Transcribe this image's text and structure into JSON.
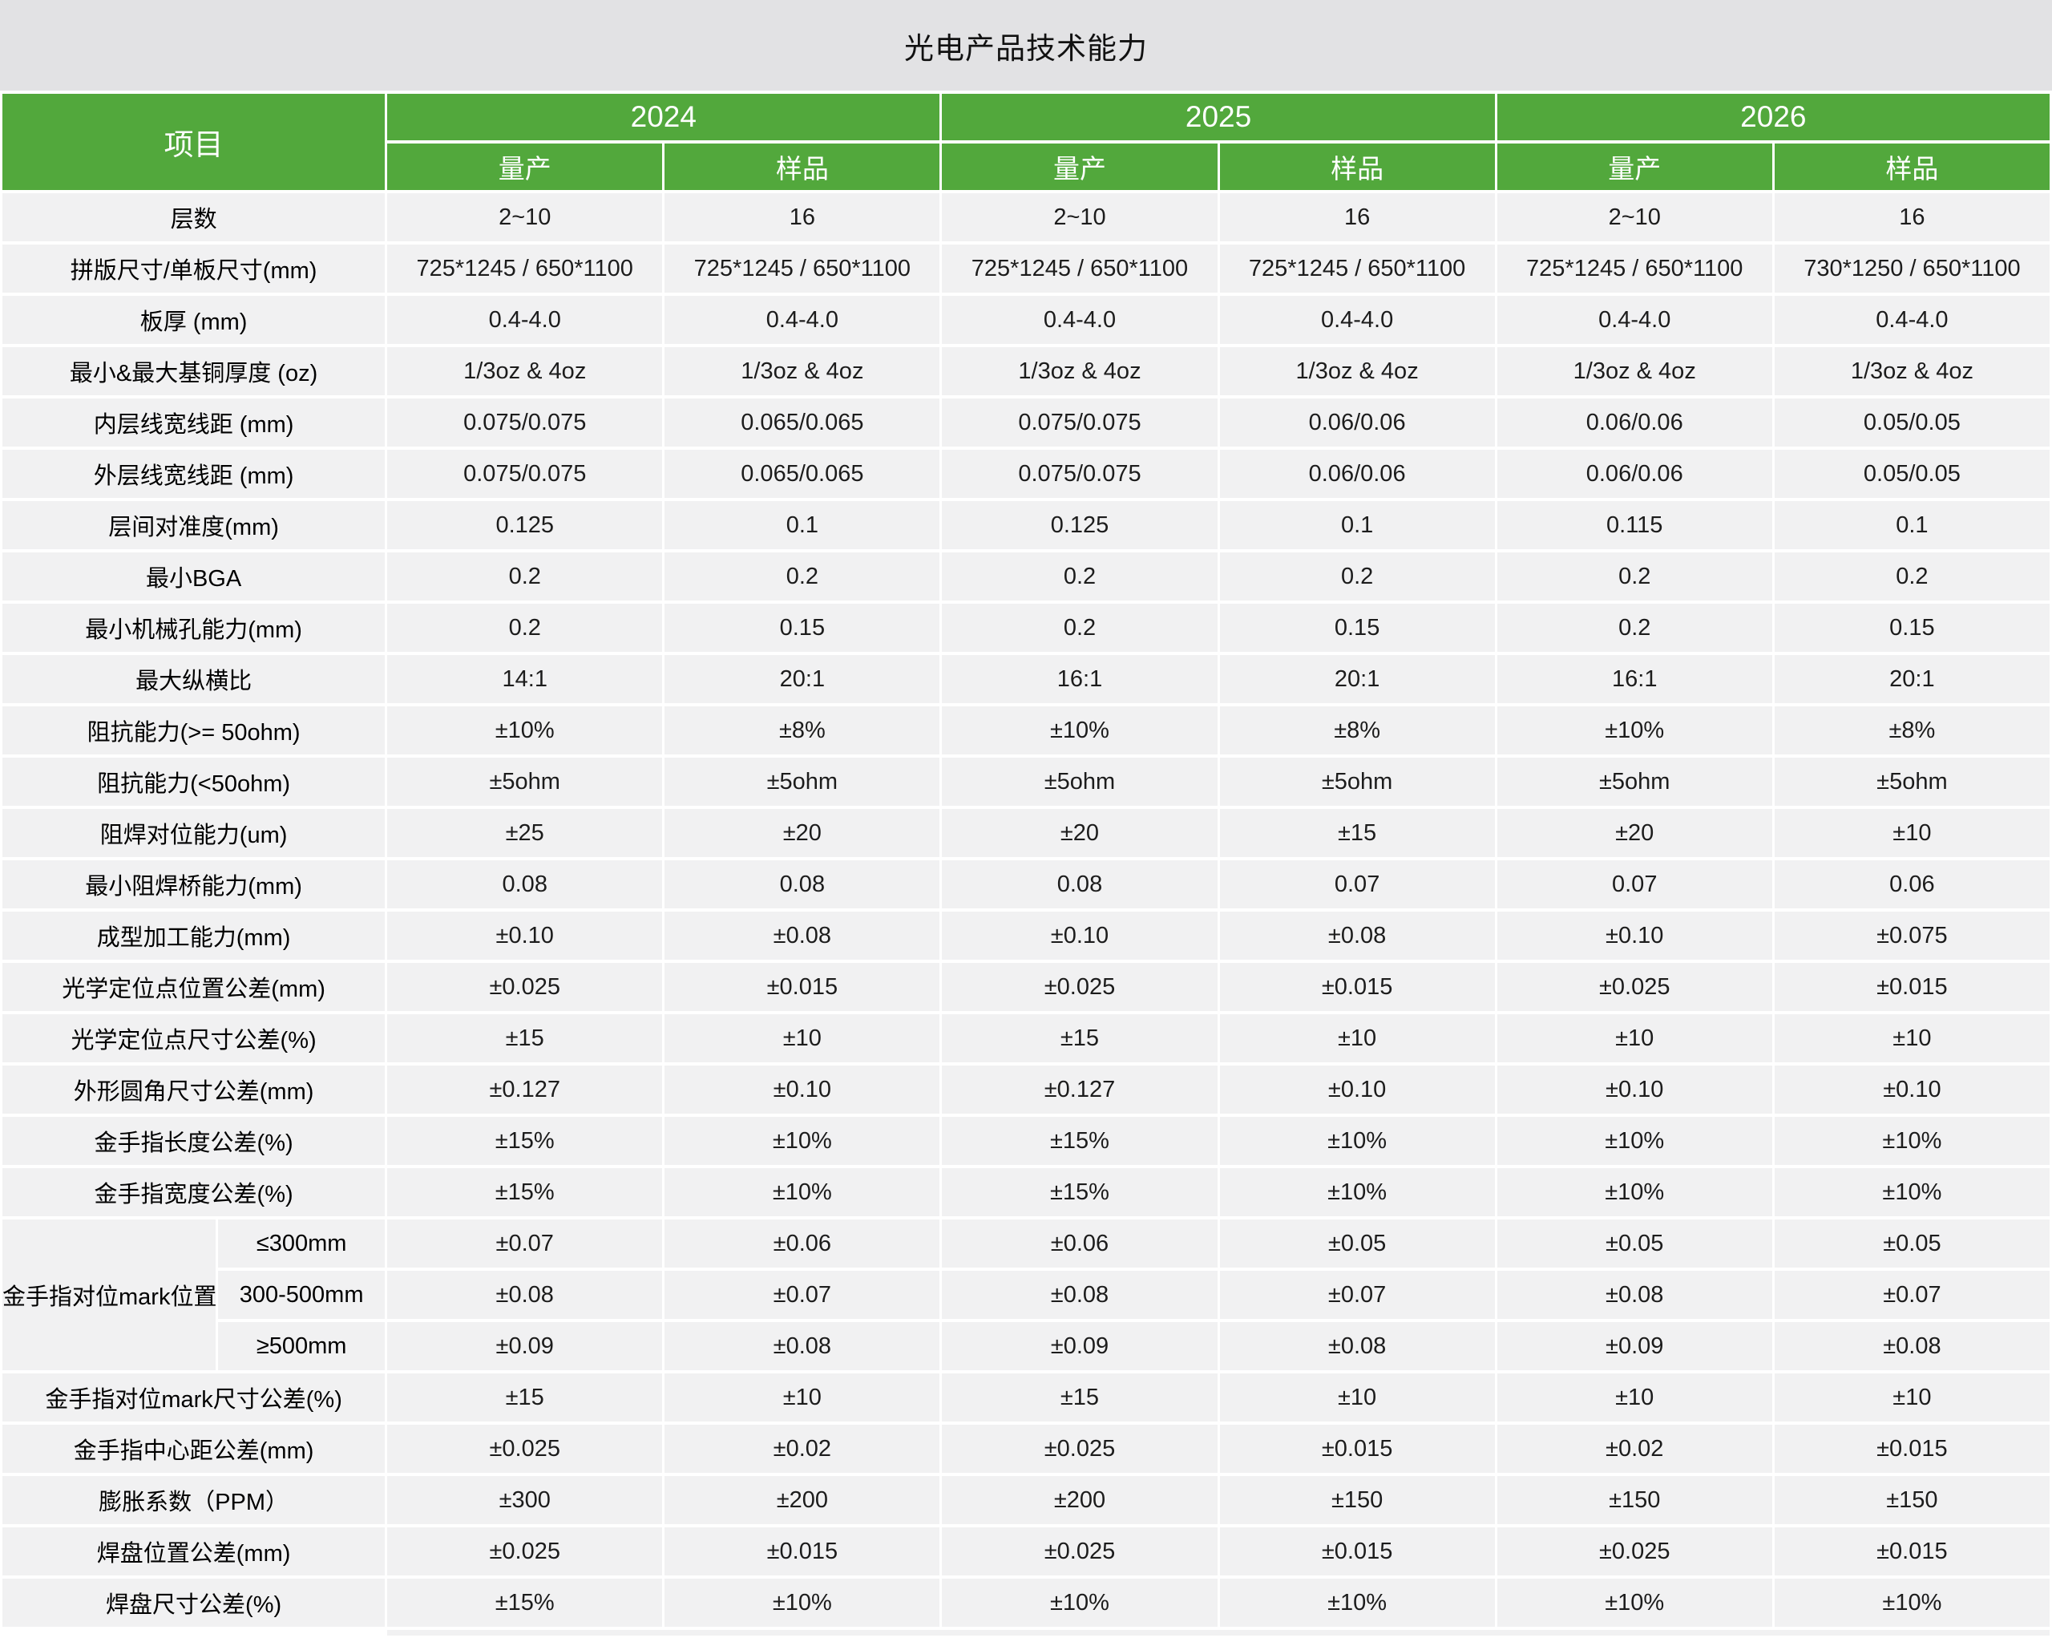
{
  "title": "光电产品技术能力",
  "colors": {
    "header_green": "#52a83c",
    "title_bg": "#e2e2e4",
    "row_bg": "#f1f1f2",
    "header_text": "#ffffff"
  },
  "header": {
    "project_label": "项目",
    "years": [
      {
        "label": "2024",
        "columns": [
          "量产",
          "样品"
        ]
      },
      {
        "label": "2025",
        "columns": [
          "量产",
          "样品"
        ]
      },
      {
        "label": "2026",
        "columns": [
          "量产",
          "样品"
        ]
      }
    ]
  },
  "rows": [
    {
      "label": "层数",
      "values": [
        "2~10",
        "16",
        "2~10",
        "16",
        "2~10",
        "16"
      ]
    },
    {
      "label": "拼版尺寸/单板尺寸(mm)",
      "values": [
        "725*1245 / 650*1100",
        "725*1245 / 650*1100",
        "725*1245 / 650*1100",
        "725*1245 / 650*1100",
        "725*1245 / 650*1100",
        "730*1250 / 650*1100"
      ]
    },
    {
      "label": "板厚 (mm)",
      "values": [
        "0.4-4.0",
        "0.4-4.0",
        "0.4-4.0",
        "0.4-4.0",
        "0.4-4.0",
        "0.4-4.0"
      ]
    },
    {
      "label": "最小&最大基铜厚度 (oz)",
      "values": [
        "1/3oz & 4oz",
        "1/3oz & 4oz",
        "1/3oz & 4oz",
        "1/3oz & 4oz",
        "1/3oz & 4oz",
        "1/3oz & 4oz"
      ]
    },
    {
      "label": "内层线宽线距 (mm)",
      "values": [
        "0.075/0.075",
        "0.065/0.065",
        "0.075/0.075",
        "0.06/0.06",
        "0.06/0.06",
        "0.05/0.05"
      ]
    },
    {
      "label": "外层线宽线距 (mm)",
      "values": [
        "0.075/0.075",
        "0.065/0.065",
        "0.075/0.075",
        "0.06/0.06",
        "0.06/0.06",
        "0.05/0.05"
      ]
    },
    {
      "label": "层间对准度(mm)",
      "values": [
        "0.125",
        "0.1",
        "0.125",
        "0.1",
        "0.115",
        "0.1"
      ]
    },
    {
      "label": "最小BGA",
      "values": [
        "0.2",
        "0.2",
        "0.2",
        "0.2",
        "0.2",
        "0.2"
      ]
    },
    {
      "label": "最小机械孔能力(mm)",
      "values": [
        "0.2",
        "0.15",
        "0.2",
        "0.15",
        "0.2",
        "0.15"
      ]
    },
    {
      "label": "最大纵横比",
      "values": [
        "14:1",
        "20:1",
        "16:1",
        "20:1",
        "16:1",
        "20:1"
      ]
    },
    {
      "label": "阻抗能力(>= 50ohm)",
      "values": [
        "±10%",
        "±8%",
        "±10%",
        "±8%",
        "±10%",
        "±8%"
      ]
    },
    {
      "label": "阻抗能力(<50ohm)",
      "values": [
        "±5ohm",
        "±5ohm",
        "±5ohm",
        "±5ohm",
        "±5ohm",
        "±5ohm"
      ]
    },
    {
      "label": "阻焊对位能力(um)",
      "values": [
        "±25",
        "±20",
        "±20",
        "±15",
        "±20",
        "±10"
      ]
    },
    {
      "label": "最小阻焊桥能力(mm)",
      "values": [
        "0.08",
        "0.08",
        "0.08",
        "0.07",
        "0.07",
        "0.06"
      ]
    },
    {
      "label": "成型加工能力(mm)",
      "values": [
        "±0.10",
        "±0.08",
        "±0.10",
        "±0.08",
        "±0.10",
        "±0.075"
      ]
    },
    {
      "label": "光学定位点位置公差(mm)",
      "values": [
        "±0.025",
        "±0.015",
        "±0.025",
        "±0.015",
        "±0.025",
        "±0.015"
      ]
    },
    {
      "label": "光学定位点尺寸公差(%)",
      "values": [
        "±15",
        "±10",
        "±15",
        "±10",
        "±10",
        "±10"
      ]
    },
    {
      "label": "外形圆角尺寸公差(mm)",
      "values": [
        "±0.127",
        "±0.10",
        "±0.127",
        "±0.10",
        "±0.10",
        "±0.10"
      ]
    },
    {
      "label": "金手指长度公差(%)",
      "values": [
        "±15%",
        "±10%",
        "±15%",
        "±10%",
        "±10%",
        "±10%"
      ]
    },
    {
      "label": "金手指宽度公差(%)",
      "values": [
        "±15%",
        "±10%",
        "±15%",
        "±10%",
        "±10%",
        "±10%"
      ]
    },
    {
      "type": "group",
      "label": "金手指对位mark位置公差(mm)",
      "subrows": [
        {
          "label": "≤300mm",
          "values": [
            "±0.07",
            "±0.06",
            "±0.06",
            "±0.05",
            "±0.05",
            "±0.05"
          ]
        },
        {
          "label": "300-500mm",
          "values": [
            "±0.08",
            "±0.07",
            "±0.08",
            "±0.07",
            "±0.08",
            "±0.07"
          ]
        },
        {
          "label": "≥500mm",
          "values": [
            "±0.09",
            "±0.08",
            "±0.09",
            "±0.08",
            "±0.09",
            "±0.08"
          ]
        }
      ]
    },
    {
      "label": "金手指对位mark尺寸公差(%)",
      "values": [
        "±15",
        "±10",
        "±15",
        "±10",
        "±10",
        "±10"
      ]
    },
    {
      "label": "金手指中心距公差(mm)",
      "values": [
        "±0.025",
        "±0.02",
        "±0.025",
        "±0.015",
        "±0.02",
        "±0.015"
      ]
    },
    {
      "label": "膨胀系数（PPM）",
      "values": [
        "±300",
        "±200",
        "±200",
        "±150",
        "±150",
        "±150"
      ]
    },
    {
      "label": "焊盘位置公差(mm)",
      "values": [
        "±0.025",
        "±0.015",
        "±0.025",
        "±0.015",
        "±0.025",
        "±0.015"
      ]
    },
    {
      "label": "焊盘尺寸公差(%)",
      "values": [
        "±15%",
        "±10%",
        "±10%",
        "±10%",
        "±10%",
        "±10%"
      ]
    }
  ]
}
